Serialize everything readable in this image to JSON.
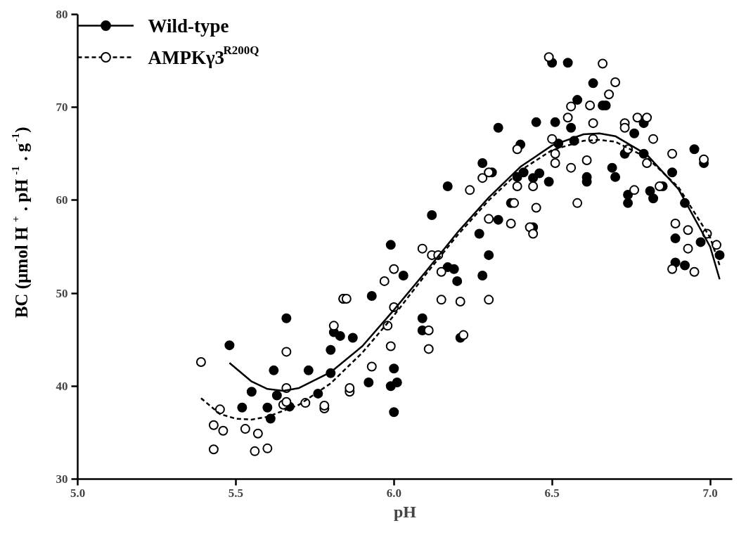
{
  "chart_data": {
    "type": "scatter",
    "xlabel": "pH",
    "ylabel": "BC (µmol H$^{+}$ . pH $^{-1}$ . g$^{-1}$)",
    "xlim": [
      5.0,
      7.07
    ],
    "ylim": [
      30,
      80
    ],
    "xticks": [
      {
        "value": 5.0,
        "label": "5.0"
      },
      {
        "value": 5.5,
        "label": "5.5"
      },
      {
        "value": 6.0,
        "label": "6.0"
      },
      {
        "value": 6.5,
        "label": "6.5"
      },
      {
        "value": 7.0,
        "label": "7.0"
      }
    ],
    "yticks": [
      30,
      40,
      50,
      60,
      70,
      80
    ],
    "grid": false,
    "legend": "top left",
    "series": [
      {
        "name": "Wild-type",
        "color": "#000000",
        "marker": "circle",
        "line_style": "solid",
        "x": [
          5.48,
          5.52,
          5.55,
          5.6,
          5.61,
          5.62,
          5.63,
          5.66,
          5.67,
          5.73,
          5.76,
          5.8,
          5.8,
          5.81,
          5.83,
          5.84,
          5.87,
          5.92,
          5.93,
          5.99,
          5.99,
          6.0,
          6.0,
          6.01,
          6.03,
          6.09,
          6.09,
          6.12,
          6.17,
          6.17,
          6.19,
          6.2,
          6.21,
          6.27,
          6.28,
          6.28,
          6.3,
          6.31,
          6.33,
          6.33,
          6.37,
          6.39,
          6.4,
          6.41,
          6.44,
          6.44,
          6.45,
          6.46,
          6.49,
          6.5,
          6.51,
          6.52,
          6.55,
          6.56,
          6.57,
          6.58,
          6.61,
          6.61,
          6.63,
          6.66,
          6.67,
          6.69,
          6.7,
          6.73,
          6.74,
          6.74,
          6.76,
          6.79,
          6.79,
          6.81,
          6.82,
          6.85,
          6.88,
          6.89,
          6.89,
          6.92,
          6.92,
          6.95,
          6.98,
          6.97,
          7.03
        ],
        "values": [
          44.4,
          37.7,
          39.4,
          37.7,
          36.5,
          41.7,
          39.0,
          47.3,
          37.8,
          41.7,
          39.2,
          41.4,
          43.9,
          45.8,
          45.4,
          49.4,
          45.2,
          40.4,
          49.7,
          55.2,
          40.0,
          41.9,
          37.2,
          40.4,
          51.9,
          47.3,
          46.0,
          58.4,
          61.5,
          52.8,
          52.6,
          51.3,
          45.2,
          56.4,
          64.0,
          51.9,
          54.1,
          63.0,
          67.8,
          57.9,
          59.7,
          62.5,
          66.0,
          63.0,
          57.1,
          62.4,
          68.4,
          62.9,
          62.0,
          74.8,
          68.4,
          66.1,
          74.8,
          67.8,
          66.4,
          70.8,
          62.5,
          62.0,
          72.6,
          70.2,
          70.2,
          63.5,
          62.5,
          65.0,
          60.6,
          59.7,
          67.2,
          68.3,
          65.0,
          61.0,
          60.2,
          61.5,
          63.0,
          55.9,
          53.3,
          59.7,
          53.0,
          65.5,
          64.0,
          55.5,
          54.1
        ]
      },
      {
        "name": "AMPKγ3$^{R200Q}$",
        "color": "#000000",
        "marker": "circle_open",
        "line_style": "dashed",
        "x": [
          5.39,
          5.43,
          5.43,
          5.45,
          5.46,
          5.53,
          5.56,
          5.57,
          5.6,
          5.65,
          5.66,
          5.66,
          5.66,
          5.72,
          5.78,
          5.78,
          5.81,
          5.84,
          5.85,
          5.86,
          5.86,
          5.93,
          5.97,
          5.98,
          5.99,
          6.0,
          6.0,
          6.09,
          6.11,
          6.11,
          6.12,
          6.14,
          6.15,
          6.15,
          6.21,
          6.22,
          6.24,
          6.28,
          6.3,
          6.3,
          6.3,
          6.37,
          6.38,
          6.39,
          6.39,
          6.43,
          6.44,
          6.44,
          6.45,
          6.49,
          6.5,
          6.51,
          6.51,
          6.55,
          6.56,
          6.56,
          6.58,
          6.61,
          6.62,
          6.63,
          6.63,
          6.66,
          6.68,
          6.7,
          6.73,
          6.73,
          6.74,
          6.76,
          6.77,
          6.8,
          6.8,
          6.82,
          6.84,
          6.88,
          6.89,
          6.88,
          6.93,
          6.93,
          6.95,
          6.99,
          6.98,
          7.02
        ],
        "values": [
          42.6,
          33.2,
          35.8,
          37.5,
          35.2,
          35.4,
          33.0,
          34.9,
          33.3,
          38.0,
          38.3,
          39.8,
          43.7,
          38.2,
          37.6,
          37.9,
          46.5,
          49.4,
          49.4,
          39.4,
          39.8,
          42.1,
          51.3,
          46.5,
          44.3,
          48.5,
          52.6,
          54.8,
          46.0,
          44.0,
          54.1,
          54.1,
          52.3,
          49.3,
          49.1,
          45.5,
          61.1,
          62.4,
          63.0,
          58.0,
          49.3,
          57.5,
          59.7,
          61.5,
          65.5,
          57.1,
          61.5,
          56.4,
          59.2,
          75.4,
          66.6,
          64.0,
          65.0,
          68.9,
          70.1,
          63.5,
          59.7,
          64.3,
          70.2,
          68.3,
          66.6,
          74.7,
          71.4,
          72.7,
          68.3,
          67.8,
          65.5,
          61.1,
          68.9,
          68.9,
          64.0,
          66.6,
          61.5,
          65.0,
          57.5,
          52.6,
          56.8,
          54.8,
          52.3,
          56.4,
          64.4,
          55.2
        ]
      },
      {
        "color": "#000000",
        "type": "line",
        "line_style": "solid",
        "x": [
          5.48,
          5.55,
          5.6,
          5.65,
          5.7,
          5.8,
          5.9,
          6.0,
          6.1,
          6.2,
          6.3,
          6.4,
          6.5,
          6.6,
          6.65,
          6.7,
          6.8,
          6.9,
          7.0,
          7.03
        ],
        "values": [
          42.5,
          40.5,
          39.7,
          39.5,
          39.8,
          41.5,
          44.3,
          48.2,
          52.3,
          56.5,
          60.3,
          63.6,
          65.9,
          67.1,
          67.2,
          66.9,
          64.9,
          61.2,
          55.0,
          51.5
        ]
      },
      {
        "color": "#000000",
        "type": "line",
        "line_style": "dashed",
        "x": [
          5.39,
          5.45,
          5.5,
          5.55,
          5.6,
          5.7,
          5.8,
          5.9,
          6.0,
          6.1,
          6.2,
          6.3,
          6.4,
          6.5,
          6.6,
          6.65,
          6.7,
          6.8,
          6.9,
          7.0,
          7.03
        ],
        "values": [
          38.7,
          37.0,
          36.5,
          36.4,
          36.7,
          38.0,
          40.3,
          43.6,
          47.6,
          52.0,
          56.2,
          60.0,
          63.2,
          65.4,
          66.4,
          66.5,
          66.3,
          64.6,
          61.4,
          56.0,
          53.0
        ]
      }
    ]
  }
}
